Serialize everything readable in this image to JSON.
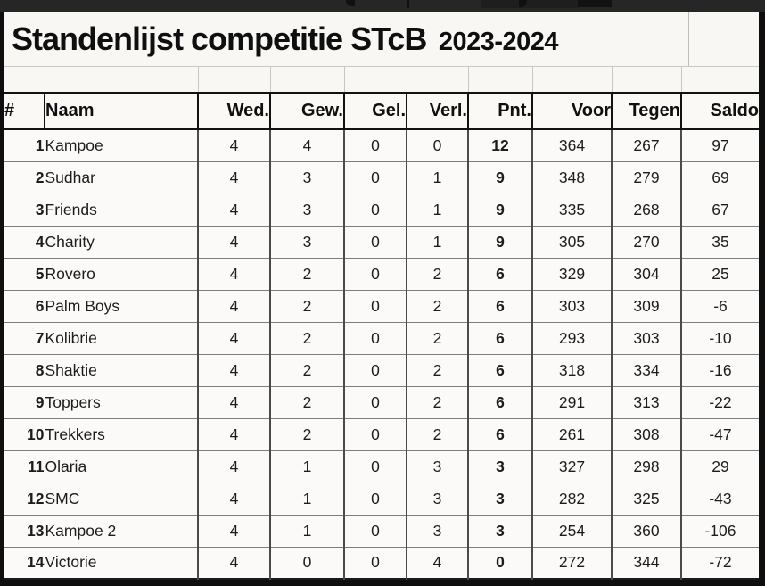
{
  "title": {
    "main": "Standenlijst competitie STcB",
    "season": "2023-2024"
  },
  "table": {
    "columns": [
      "#",
      "Naam",
      "Wed.",
      "Gew.",
      "Gel.",
      "Verl.",
      "Pnt.",
      "Voor",
      "Tegen",
      "Saldo"
    ],
    "rows": [
      {
        "pos": "1",
        "naam": "Kampoe",
        "wed": "4",
        "gew": "4",
        "gel": "0",
        "verl": "0",
        "pnt": "12",
        "voor": "364",
        "tegen": "267",
        "saldo": "97"
      },
      {
        "pos": "2",
        "naam": "Sudhar",
        "wed": "4",
        "gew": "3",
        "gel": "0",
        "verl": "1",
        "pnt": "9",
        "voor": "348",
        "tegen": "279",
        "saldo": "69"
      },
      {
        "pos": "3",
        "naam": "Friends",
        "wed": "4",
        "gew": "3",
        "gel": "0",
        "verl": "1",
        "pnt": "9",
        "voor": "335",
        "tegen": "268",
        "saldo": "67"
      },
      {
        "pos": "4",
        "naam": "Charity",
        "wed": "4",
        "gew": "3",
        "gel": "0",
        "verl": "1",
        "pnt": "9",
        "voor": "305",
        "tegen": "270",
        "saldo": "35"
      },
      {
        "pos": "5",
        "naam": "Rovero",
        "wed": "4",
        "gew": "2",
        "gel": "0",
        "verl": "2",
        "pnt": "6",
        "voor": "329",
        "tegen": "304",
        "saldo": "25"
      },
      {
        "pos": "6",
        "naam": "Palm Boys",
        "wed": "4",
        "gew": "2",
        "gel": "0",
        "verl": "2",
        "pnt": "6",
        "voor": "303",
        "tegen": "309",
        "saldo": "-6"
      },
      {
        "pos": "7",
        "naam": "Kolibrie",
        "wed": "4",
        "gew": "2",
        "gel": "0",
        "verl": "2",
        "pnt": "6",
        "voor": "293",
        "tegen": "303",
        "saldo": "-10"
      },
      {
        "pos": "8",
        "naam": "Shaktie",
        "wed": "4",
        "gew": "2",
        "gel": "0",
        "verl": "2",
        "pnt": "6",
        "voor": "318",
        "tegen": "334",
        "saldo": "-16"
      },
      {
        "pos": "9",
        "naam": "Toppers",
        "wed": "4",
        "gew": "2",
        "gel": "0",
        "verl": "2",
        "pnt": "6",
        "voor": "291",
        "tegen": "313",
        "saldo": "-22"
      },
      {
        "pos": "10",
        "naam": "Trekkers",
        "wed": "4",
        "gew": "2",
        "gel": "0",
        "verl": "2",
        "pnt": "6",
        "voor": "261",
        "tegen": "308",
        "saldo": "-47"
      },
      {
        "pos": "11",
        "naam": "Olaria",
        "wed": "4",
        "gew": "1",
        "gel": "0",
        "verl": "3",
        "pnt": "3",
        "voor": "327",
        "tegen": "298",
        "saldo": "29"
      },
      {
        "pos": "12",
        "naam": "SMC",
        "wed": "4",
        "gew": "1",
        "gel": "0",
        "verl": "3",
        "pnt": "3",
        "voor": "282",
        "tegen": "325",
        "saldo": "-43"
      },
      {
        "pos": "13",
        "naam": "Kampoe 2",
        "wed": "4",
        "gew": "1",
        "gel": "0",
        "verl": "3",
        "pnt": "3",
        "voor": "254",
        "tegen": "360",
        "saldo": "-106"
      },
      {
        "pos": "14",
        "naam": "Victorie",
        "wed": "4",
        "gew": "0",
        "gel": "0",
        "verl": "4",
        "pnt": "0",
        "voor": "272",
        "tegen": "344",
        "saldo": "-72"
      }
    ]
  },
  "colors": {
    "frame": "#0e0e0e",
    "top_strip": "#262626",
    "paper": "#f8f7f4",
    "grid_dark": "#4b4b4b",
    "grid_light": "#c6c6c6",
    "header_border": "#121212",
    "text": "#181818"
  }
}
